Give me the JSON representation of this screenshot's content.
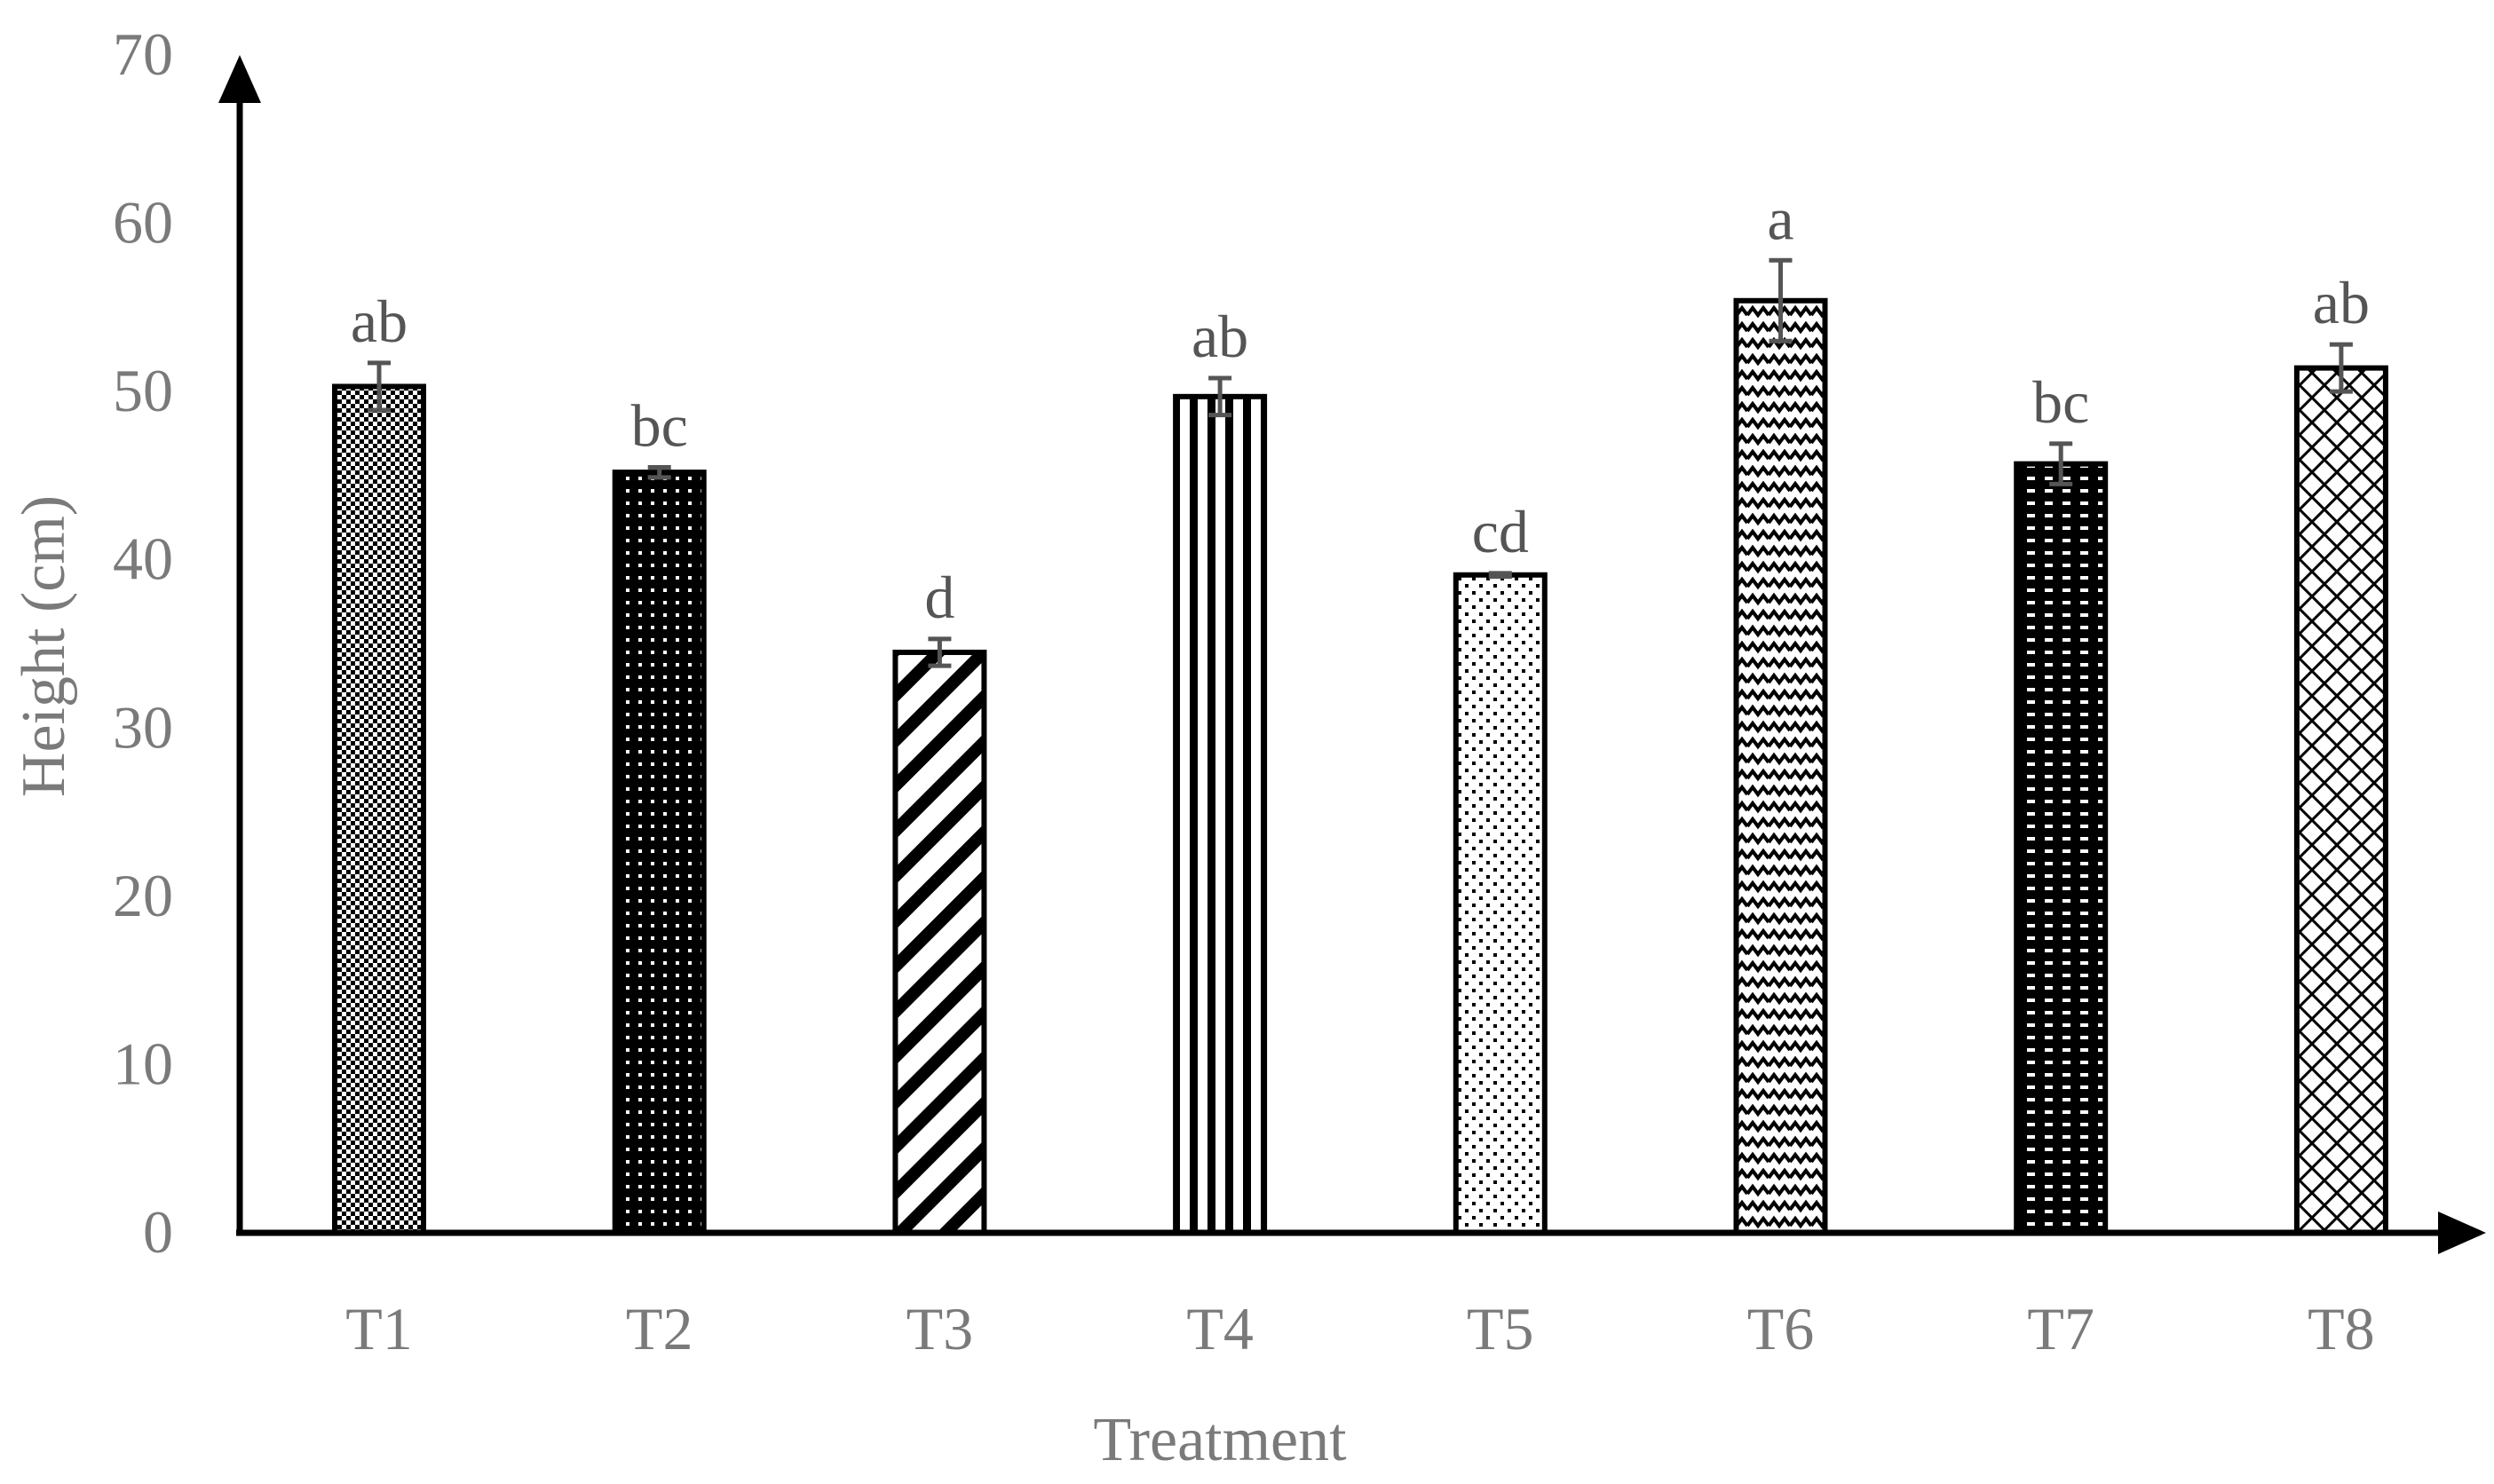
{
  "chart_data": {
    "type": "bar",
    "xlabel": "Treatment",
    "ylabel": "Height (cm)",
    "ylim": [
      0,
      70
    ],
    "yticks": [
      0,
      10,
      20,
      30,
      40,
      50,
      60,
      70
    ],
    "categories": [
      "T1",
      "T2",
      "T3",
      "T4",
      "T5",
      "T6",
      "T7",
      "T8"
    ],
    "values": [
      50.3,
      45.2,
      34.5,
      49.7,
      39.1,
      55.4,
      45.7,
      51.4
    ],
    "errors": [
      1.4,
      0.3,
      0.8,
      1.1,
      0.1,
      2.4,
      1.2,
      1.4
    ],
    "significance": [
      "ab",
      "bc",
      "d",
      "ab",
      "cd",
      "a",
      "bc",
      "ab"
    ],
    "patterns": [
      "checker",
      "dots-dark",
      "diagonal",
      "vertical",
      "dots-light",
      "zigzag",
      "dash-dark",
      "lattice"
    ],
    "grid": false,
    "legend": "none",
    "colors": {
      "axis": "#000000",
      "bar_outline": "#000000",
      "error_bar": "#555555",
      "text": "#7a7a7a"
    }
  }
}
